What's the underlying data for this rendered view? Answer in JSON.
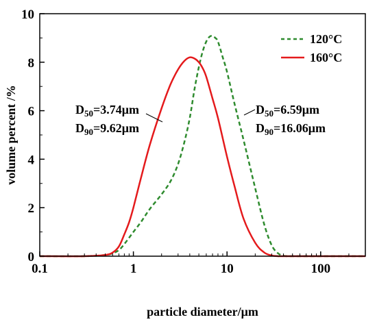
{
  "chart_data": {
    "type": "line",
    "xscale": "log",
    "xlim": [
      0.1,
      300
    ],
    "ylim": [
      0,
      10
    ],
    "xlabel": "particle diameter/μm",
    "ylabel": "volume  percent /%",
    "xticks": [
      {
        "value": 0.1,
        "label": "0.1"
      },
      {
        "value": 1,
        "label": "1"
      },
      {
        "value": 10,
        "label": "10"
      },
      {
        "value": 100,
        "label": "100"
      }
    ],
    "yticks": [
      {
        "value": 0,
        "label": "0"
      },
      {
        "value": 2,
        "label": "2"
      },
      {
        "value": 4,
        "label": "4"
      },
      {
        "value": 6,
        "label": "6"
      },
      {
        "value": 8,
        "label": "8"
      },
      {
        "value": 10,
        "label": "10"
      }
    ],
    "legend_position": "top-right",
    "series": [
      {
        "name": "120°C",
        "color": "#2e8b2e",
        "style": "dashed",
        "x": [
          0.1,
          0.3,
          0.5,
          0.6,
          0.7,
          0.8,
          1.0,
          1.2,
          1.5,
          2.0,
          2.5,
          3.0,
          3.5,
          4.0,
          4.5,
          5.0,
          5.5,
          6.0,
          6.5,
          7.0,
          7.5,
          8.0,
          9.0,
          10.0,
          12.0,
          15.0,
          20.0,
          25.0,
          30.0,
          35.0,
          40.0,
          45.0,
          50.0,
          100.0,
          300.0
        ],
        "y": [
          0,
          0,
          0.05,
          0.12,
          0.25,
          0.5,
          1.0,
          1.4,
          1.95,
          2.55,
          3.1,
          3.8,
          4.7,
          5.7,
          6.9,
          7.8,
          8.45,
          8.85,
          9.05,
          9.08,
          9.0,
          8.85,
          8.2,
          7.6,
          6.3,
          4.8,
          2.8,
          1.3,
          0.45,
          0.12,
          0.02,
          0,
          0,
          0,
          0
        ]
      },
      {
        "name": "160°C",
        "color": "#e41a1c",
        "style": "solid",
        "x": [
          0.1,
          0.3,
          0.5,
          0.6,
          0.7,
          0.8,
          0.9,
          1.0,
          1.2,
          1.5,
          2.0,
          2.5,
          3.0,
          3.5,
          4.0,
          4.5,
          5.0,
          5.5,
          6.0,
          7.0,
          8.0,
          10.0,
          12.0,
          15.0,
          20.0,
          25.0,
          30.0,
          35.0,
          40.0,
          100.0,
          300.0
        ],
        "y": [
          0,
          0,
          0.05,
          0.15,
          0.4,
          0.9,
          1.4,
          2.0,
          3.2,
          4.6,
          6.1,
          7.1,
          7.7,
          8.05,
          8.2,
          8.15,
          8.0,
          7.75,
          7.4,
          6.5,
          5.7,
          4.1,
          2.9,
          1.55,
          0.55,
          0.15,
          0.03,
          0,
          0,
          0,
          0
        ]
      }
    ],
    "annotations": [
      {
        "base": "D",
        "sub": "50",
        "text": "=3.74μm"
      },
      {
        "base": "D",
        "sub": "90",
        "text": "=9.62μm"
      },
      {
        "base": "D",
        "sub": "50",
        "text": "=6.59μm"
      },
      {
        "base": "D",
        "sub": "90",
        "text": "=16.06μm"
      }
    ]
  }
}
